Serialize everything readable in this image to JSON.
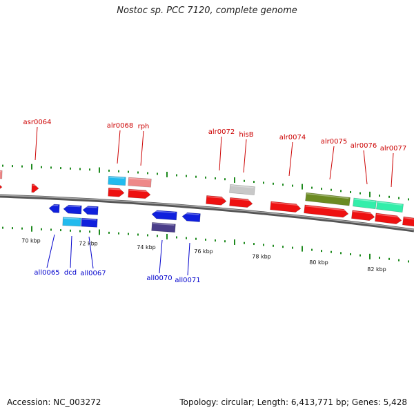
{
  "title": "Nostoc sp. PCC 7120, complete genome",
  "footer": {
    "accession": "Accession: NC_003272",
    "topology": "Topology: circular; Length: 6,413,771 bp; Genes: 5,428"
  },
  "colors": {
    "forward_label": "#cc0000",
    "reverse_label": "#0000cc",
    "tick": "#1e8a1e",
    "backbone": "#777777"
  },
  "kbp_labels": [
    "70 kbp",
    "72 kbp",
    "74 kbp",
    "76 kbp",
    "78 kbp",
    "80 kbp",
    "82 kbp"
  ],
  "forward_gene_labels": [
    "asr0064",
    "alr0068",
    "rph",
    "alr0072",
    "hisB",
    "alr0074",
    "alr0075",
    "alr0076",
    "alr0077"
  ],
  "reverse_gene_labels": [
    "all0065",
    "dcd",
    "all0067",
    "all0070",
    "all0071"
  ],
  "gene_colors": {
    "red": "#ee1111",
    "blue": "#1020dd",
    "cyan": "#22bbee",
    "pink": "#ee8888",
    "gray": "#c8c8c8",
    "olive": "#6b8a22",
    "mint": "#33eeaa",
    "slate": "#4a3e8a"
  }
}
